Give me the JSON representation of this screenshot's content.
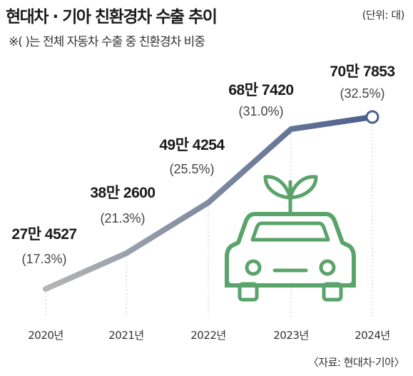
{
  "title": "현대차 · 기아 친환경차 수출 추이",
  "unit": "(단위: 대)",
  "subtitle": "※(  )는 전체 자동차 수출 중 친환경차 비중",
  "source": "〈자료: 현대차·기아〉",
  "chart_data": {
    "type": "line",
    "title": "현대차 · 기아 친환경차 수출 추이",
    "categories": [
      "2020년",
      "2021년",
      "2022년",
      "2023년",
      "2024년"
    ],
    "series": [
      {
        "values": [
          274527,
          382600,
          494254,
          687420,
          707853
        ],
        "labels": [
          "27만 4527",
          "38만 2600",
          "49만 4254",
          "68만 7420",
          "70만 7853"
        ],
        "shares": [
          "(17.3%)",
          "(21.3%)",
          "(25.5%)",
          "(31.0%)",
          "(32.5%)"
        ],
        "share_percent": [
          17.3,
          21.3,
          25.5,
          31.0,
          32.5
        ]
      }
    ],
    "ylim": [
      200000,
      750000
    ],
    "grid": true,
    "colors": {
      "line_start": "#b5b5b5",
      "line_end": "#4a5f8c",
      "icon": "#5aa36a",
      "grid": "#c8c8c8"
    }
  }
}
